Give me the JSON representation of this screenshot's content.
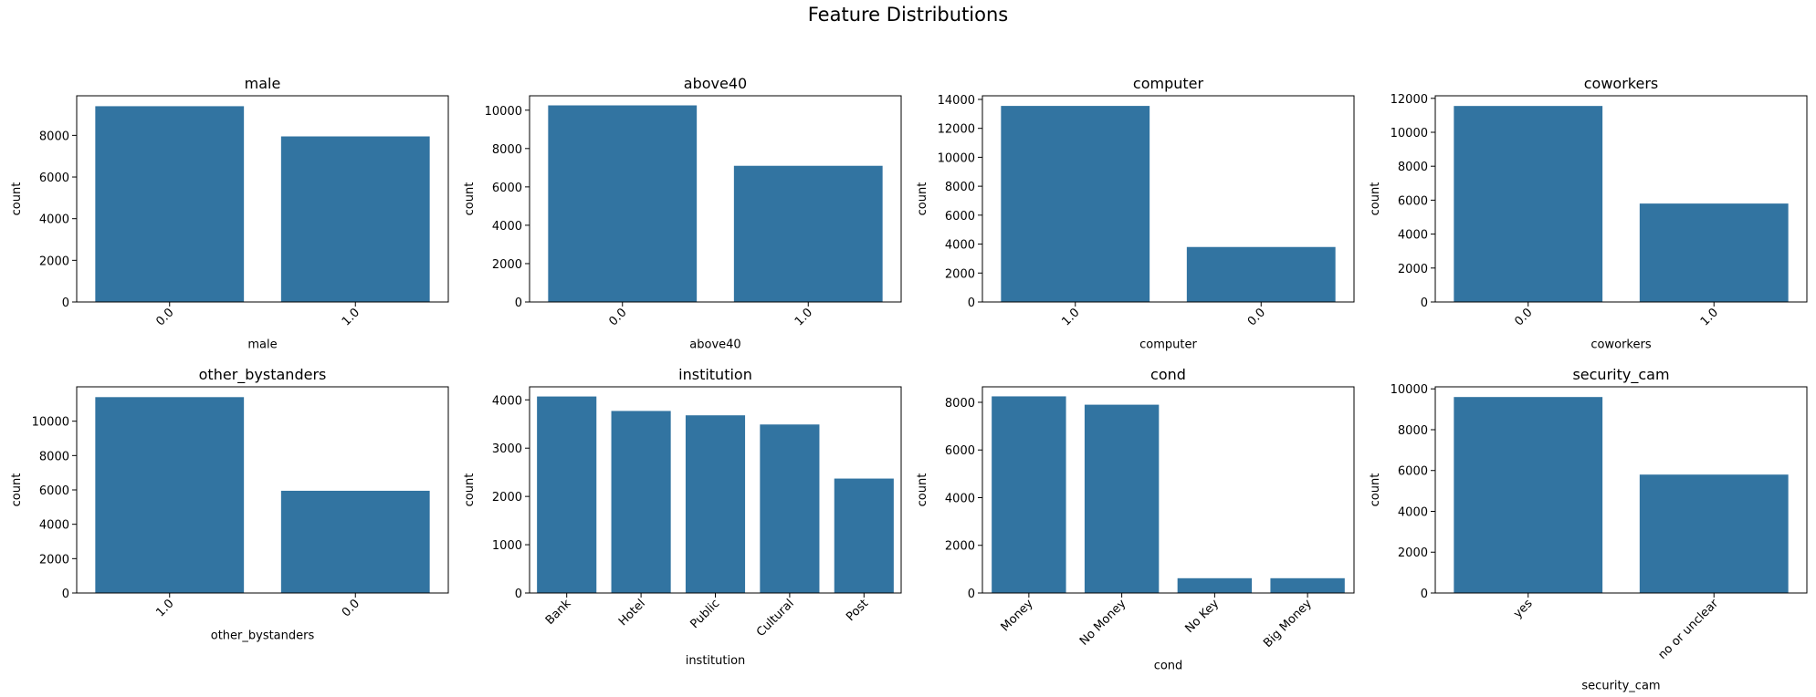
{
  "figure": {
    "title": "Feature Distributions"
  },
  "chart_data": [
    {
      "type": "bar",
      "title": "male",
      "xlabel": "male",
      "ylabel": "count",
      "categories": [
        "0.0",
        "1.0"
      ],
      "values": [
        9400,
        7950
      ],
      "ylim": [
        0,
        9900
      ],
      "yticks": [
        0,
        2000,
        4000,
        6000,
        8000
      ],
      "xtick_rotation": 45,
      "color": "#3274a1"
    },
    {
      "type": "bar",
      "title": "above40",
      "xlabel": "above40",
      "ylabel": "count",
      "categories": [
        "0.0",
        "1.0"
      ],
      "values": [
        10250,
        7100
      ],
      "ylim": [
        0,
        10750
      ],
      "yticks": [
        0,
        2000,
        4000,
        6000,
        8000,
        10000
      ],
      "xtick_rotation": 45,
      "color": "#3274a1"
    },
    {
      "type": "bar",
      "title": "computer",
      "xlabel": "computer",
      "ylabel": "count",
      "categories": [
        "1.0",
        "0.0"
      ],
      "values": [
        13550,
        3800
      ],
      "ylim": [
        0,
        14250
      ],
      "yticks": [
        0,
        2000,
        4000,
        6000,
        8000,
        10000,
        12000,
        14000
      ],
      "xtick_rotation": 45,
      "color": "#3274a1"
    },
    {
      "type": "bar",
      "title": "coworkers",
      "xlabel": "coworkers",
      "ylabel": "count",
      "categories": [
        "0.0",
        "1.0"
      ],
      "values": [
        11550,
        5800
      ],
      "ylim": [
        0,
        12150
      ],
      "yticks": [
        0,
        2000,
        4000,
        6000,
        8000,
        10000,
        12000
      ],
      "xtick_rotation": 45,
      "color": "#3274a1"
    },
    {
      "type": "bar",
      "title": "other_bystanders",
      "xlabel": "other_bystanders",
      "ylabel": "count",
      "categories": [
        "1.0",
        "0.0"
      ],
      "values": [
        11400,
        5950
      ],
      "ylim": [
        0,
        12000
      ],
      "yticks": [
        0,
        2000,
        4000,
        6000,
        8000,
        10000
      ],
      "xtick_rotation": 45,
      "color": "#3274a1"
    },
    {
      "type": "bar",
      "title": "institution",
      "xlabel": "institution",
      "ylabel": "count",
      "categories": [
        "Bank",
        "Hotel",
        "Public",
        "Cultural",
        "Post"
      ],
      "values": [
        4070,
        3770,
        3680,
        3490,
        2370
      ],
      "ylim": [
        0,
        4270
      ],
      "yticks": [
        0,
        1000,
        2000,
        3000,
        4000
      ],
      "xtick_rotation": 45,
      "color": "#3274a1"
    },
    {
      "type": "bar",
      "title": "cond",
      "xlabel": "cond",
      "ylabel": "count",
      "categories": [
        "Money",
        "No Money",
        "No Key",
        "Big Money"
      ],
      "values": [
        8250,
        7900,
        620,
        620
      ],
      "ylim": [
        0,
        8650
      ],
      "yticks": [
        0,
        2000,
        4000,
        6000,
        8000
      ],
      "xtick_rotation": 45,
      "color": "#3274a1"
    },
    {
      "type": "bar",
      "title": "security_cam",
      "xlabel": "security_cam",
      "ylabel": "count",
      "categories": [
        "yes",
        "no or unclear"
      ],
      "values": [
        9600,
        5800
      ],
      "ylim": [
        0,
        10100
      ],
      "yticks": [
        0,
        2000,
        4000,
        6000,
        8000,
        10000
      ],
      "xtick_rotation": 45,
      "color": "#3274a1"
    }
  ]
}
